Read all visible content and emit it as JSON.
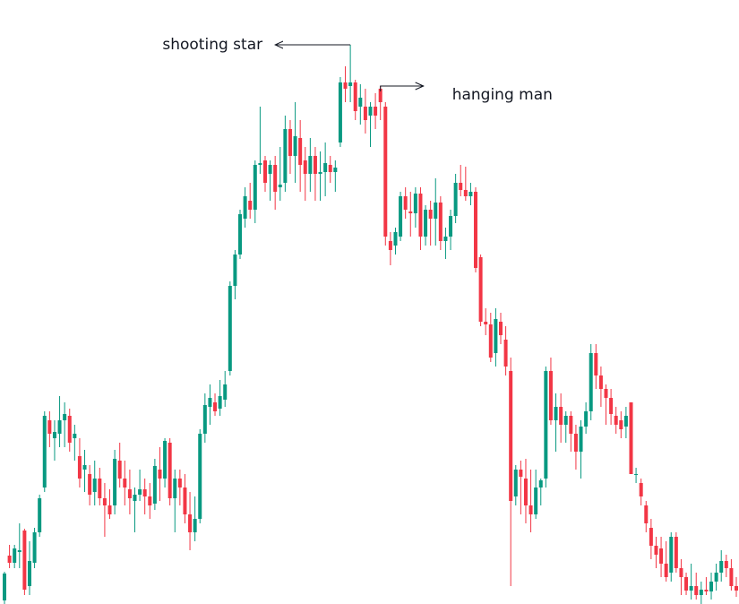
{
  "chart_data": {
    "type": "candlestick",
    "up_color": "#089981",
    "down_color": "#f23645",
    "ylim": [
      0,
      674
    ],
    "annotations": [
      "shooting star",
      "hanging man"
    ],
    "candles": [
      [
        4,
        36,
        0,
        34
      ],
      [
        54,
        66,
        40,
        46
      ],
      [
        46,
        66,
        40,
        62
      ],
      [
        58,
        90,
        40,
        60
      ],
      [
        82,
        84,
        10,
        16
      ],
      [
        20,
        70,
        10,
        48
      ],
      [
        46,
        85,
        40,
        80
      ],
      [
        80,
        122,
        75,
        118
      ],
      [
        130,
        215,
        125,
        210
      ],
      [
        205,
        215,
        175,
        190
      ],
      [
        185,
        205,
        160,
        192
      ],
      [
        190,
        232,
        175,
        205
      ],
      [
        205,
        225,
        175,
        212
      ],
      [
        210,
        218,
        170,
        180
      ],
      [
        185,
        200,
        160,
        190
      ],
      [
        165,
        185,
        130,
        140
      ],
      [
        150,
        172,
        125,
        155
      ],
      [
        145,
        155,
        110,
        122
      ],
      [
        125,
        160,
        110,
        140
      ],
      [
        140,
        152,
        110,
        118
      ],
      [
        118,
        135,
        75,
        110
      ],
      [
        110,
        128,
        95,
        100
      ],
      [
        110,
        172,
        100,
        162
      ],
      [
        160,
        180,
        130,
        140
      ],
      [
        140,
        160,
        110,
        130
      ],
      [
        128,
        150,
        100,
        118
      ],
      [
        115,
        130,
        80,
        122
      ],
      [
        122,
        150,
        115,
        128
      ],
      [
        128,
        140,
        100,
        120
      ],
      [
        120,
        135,
        95,
        110
      ],
      [
        112,
        162,
        105,
        154
      ],
      [
        150,
        175,
        115,
        140
      ],
      [
        140,
        185,
        130,
        182
      ],
      [
        180,
        185,
        110,
        118
      ],
      [
        118,
        150,
        80,
        140
      ],
      [
        140,
        150,
        110,
        130
      ],
      [
        130,
        145,
        90,
        100
      ],
      [
        100,
        125,
        60,
        80
      ],
      [
        80,
        120,
        70,
        95
      ],
      [
        95,
        195,
        90,
        190
      ],
      [
        190,
        235,
        180,
        222
      ],
      [
        220,
        245,
        200,
        230
      ],
      [
        225,
        235,
        210,
        215
      ],
      [
        218,
        250,
        210,
        232
      ],
      [
        228,
        260,
        220,
        245
      ],
      [
        260,
        360,
        255,
        355
      ],
      [
        355,
        395,
        340,
        390
      ],
      [
        390,
        440,
        385,
        435
      ],
      [
        430,
        465,
        420,
        455
      ],
      [
        450,
        470,
        430,
        440
      ],
      [
        440,
        495,
        425,
        490
      ],
      [
        490,
        555,
        480,
        492
      ],
      [
        495,
        500,
        460,
        470
      ],
      [
        480,
        495,
        450,
        490
      ],
      [
        490,
        500,
        440,
        460
      ],
      [
        465,
        510,
        450,
        468
      ],
      [
        470,
        545,
        460,
        530
      ],
      [
        530,
        540,
        480,
        500
      ],
      [
        500,
        560,
        470,
        522
      ],
      [
        520,
        540,
        460,
        490
      ],
      [
        495,
        510,
        450,
        480
      ],
      [
        480,
        520,
        460,
        500
      ],
      [
        500,
        510,
        450,
        480
      ],
      [
        480,
        505,
        450,
        482
      ],
      [
        482,
        515,
        455,
        492
      ],
      [
        490,
        500,
        470,
        482
      ],
      [
        482,
        495,
        460,
        487
      ],
      [
        515,
        588,
        510,
        582
      ],
      [
        582,
        600,
        560,
        575
      ],
      [
        578,
        624,
        560,
        582
      ],
      [
        582,
        585,
        540,
        550
      ],
      [
        555,
        580,
        535,
        565
      ],
      [
        555,
        575,
        525,
        540
      ],
      [
        545,
        560,
        510,
        555
      ],
      [
        555,
        570,
        530,
        545
      ],
      [
        575,
        578,
        540,
        560
      ],
      [
        555,
        560,
        400,
        410
      ],
      [
        405,
        415,
        378,
        395
      ],
      [
        400,
        420,
        390,
        415
      ],
      [
        410,
        460,
        405,
        455
      ],
      [
        455,
        465,
        430,
        440
      ],
      [
        438,
        460,
        410,
        436
      ],
      [
        436,
        465,
        420,
        458
      ],
      [
        458,
        465,
        395,
        410
      ],
      [
        410,
        445,
        400,
        440
      ],
      [
        440,
        450,
        400,
        430
      ],
      [
        430,
        475,
        400,
        448
      ],
      [
        448,
        455,
        395,
        405
      ],
      [
        405,
        420,
        385,
        410
      ],
      [
        410,
        440,
        395,
        433
      ],
      [
        433,
        480,
        425,
        470
      ],
      [
        470,
        490,
        455,
        462
      ],
      [
        462,
        488,
        450,
        455
      ],
      [
        455,
        470,
        445,
        460
      ],
      [
        460,
        465,
        370,
        375
      ],
      [
        387,
        390,
        310,
        315
      ],
      [
        315,
        330,
        300,
        312
      ],
      [
        312,
        325,
        270,
        275
      ],
      [
        280,
        330,
        265,
        318
      ],
      [
        315,
        325,
        290,
        300
      ],
      [
        295,
        310,
        255,
        265
      ],
      [
        260,
        275,
        20,
        115
      ],
      [
        120,
        155,
        110,
        150
      ],
      [
        150,
        160,
        100,
        142
      ],
      [
        140,
        162,
        90,
        110
      ],
      [
        110,
        150,
        80,
        100
      ],
      [
        100,
        150,
        95,
        130
      ],
      [
        130,
        140,
        110,
        138
      ],
      [
        140,
        265,
        130,
        260
      ],
      [
        260,
        275,
        200,
        205
      ],
      [
        205,
        235,
        170,
        220
      ],
      [
        220,
        235,
        180,
        200
      ],
      [
        200,
        215,
        180,
        210
      ],
      [
        210,
        215,
        170,
        190
      ],
      [
        190,
        200,
        150,
        170
      ],
      [
        170,
        205,
        140,
        198
      ],
      [
        198,
        225,
        190,
        215
      ],
      [
        215,
        290,
        205,
        280
      ],
      [
        280,
        290,
        240,
        255
      ],
      [
        255,
        265,
        220,
        240
      ],
      [
        240,
        245,
        200,
        230
      ],
      [
        230,
        240,
        200,
        212
      ],
      [
        210,
        220,
        190,
        200
      ],
      [
        205,
        215,
        185,
        195
      ],
      [
        198,
        220,
        185,
        210
      ],
      [
        225,
        225,
        145,
        145
      ],
      [
        145,
        152,
        135,
        145
      ],
      [
        135,
        140,
        110,
        120
      ],
      [
        110,
        115,
        80,
        90
      ],
      [
        85,
        95,
        50,
        65
      ],
      [
        65,
        75,
        40,
        55
      ],
      [
        62,
        75,
        30,
        45
      ],
      [
        45,
        70,
        25,
        30
      ],
      [
        35,
        80,
        25,
        75
      ],
      [
        75,
        80,
        35,
        40
      ],
      [
        40,
        50,
        10,
        30
      ],
      [
        30,
        35,
        10,
        15
      ],
      [
        15,
        45,
        5,
        20
      ],
      [
        20,
        35,
        5,
        10
      ],
      [
        10,
        25,
        0,
        16
      ],
      [
        16,
        30,
        10,
        14
      ],
      [
        14,
        35,
        5,
        25
      ],
      [
        25,
        45,
        15,
        35
      ],
      [
        35,
        60,
        25,
        48
      ],
      [
        48,
        55,
        30,
        40
      ],
      [
        40,
        50,
        15,
        20
      ],
      [
        20,
        30,
        8,
        15
      ]
    ]
  }
}
